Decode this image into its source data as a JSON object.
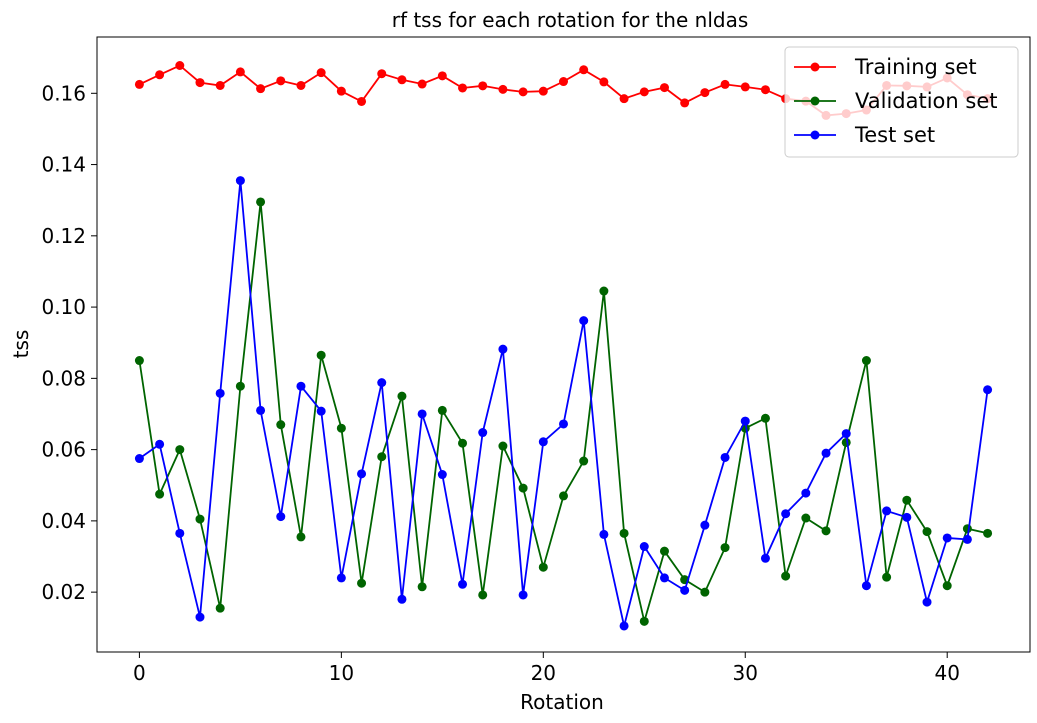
{
  "chart_data": {
    "type": "line",
    "title": "rf tss for each rotation for the nldas",
    "xlabel": "Rotation",
    "ylabel": "tss",
    "xlim": [
      -2.1,
      44.1
    ],
    "ylim": [
      0.0032,
      0.1758
    ],
    "xticks": [
      0,
      10,
      20,
      30,
      40
    ],
    "xtick_labels": [
      "0",
      "10",
      "20",
      "30",
      "40"
    ],
    "yticks": [
      0.02,
      0.04,
      0.06,
      0.08,
      0.1,
      0.12,
      0.14,
      0.16
    ],
    "ytick_labels": [
      "0.02",
      "0.04",
      "0.06",
      "0.08",
      "0.10",
      "0.12",
      "0.14",
      "0.16"
    ],
    "grid": false,
    "legend_position": "top-right",
    "x": [
      0,
      1,
      2,
      3,
      4,
      5,
      6,
      7,
      8,
      9,
      10,
      11,
      12,
      13,
      14,
      15,
      16,
      17,
      18,
      19,
      20,
      21,
      22,
      23,
      24,
      25,
      26,
      27,
      28,
      29,
      30,
      31,
      32,
      33,
      34,
      35,
      36,
      37,
      38,
      39,
      40,
      41,
      42
    ],
    "series": [
      {
        "name": "Training set",
        "color": "#ff0000",
        "marker": "circle",
        "values": [
          0.1625,
          0.1652,
          0.1678,
          0.163,
          0.1622,
          0.166,
          0.1613,
          0.1635,
          0.1622,
          0.1658,
          0.1606,
          0.1577,
          0.1655,
          0.1638,
          0.1626,
          0.1649,
          0.1615,
          0.1621,
          0.1611,
          0.1604,
          0.1606,
          0.1633,
          0.1666,
          0.1632,
          0.1585,
          0.1604,
          0.1616,
          0.1573,
          0.1602,
          0.1625,
          0.1618,
          0.161,
          0.1585,
          0.1578,
          0.1538,
          0.1543,
          0.1553,
          0.1622,
          0.1621,
          0.1618,
          0.1643,
          0.1596,
          0.1585
        ]
      },
      {
        "name": "Validation set",
        "color": "#006400",
        "marker": "circle",
        "values": [
          0.085,
          0.0475,
          0.06,
          0.0405,
          0.0155,
          0.0778,
          0.1295,
          0.067,
          0.0355,
          0.0865,
          0.066,
          0.0225,
          0.058,
          0.075,
          0.0215,
          0.071,
          0.0618,
          0.0192,
          0.061,
          0.0492,
          0.027,
          0.047,
          0.0568,
          0.1045,
          0.0365,
          0.0118,
          0.0315,
          0.0235,
          0.02,
          0.0325,
          0.066,
          0.0688,
          0.0245,
          0.0408,
          0.0372,
          0.062,
          0.085,
          0.0242,
          0.0458,
          0.037,
          0.0218,
          0.0378,
          0.0365
        ]
      },
      {
        "name": "Test set",
        "color": "#0000ff",
        "marker": "circle",
        "values": [
          0.0575,
          0.0615,
          0.0365,
          0.013,
          0.0758,
          0.1355,
          0.071,
          0.0412,
          0.0778,
          0.0708,
          0.024,
          0.0532,
          0.0788,
          0.018,
          0.07,
          0.053,
          0.0222,
          0.0648,
          0.0882,
          0.0192,
          0.0622,
          0.0672,
          0.0962,
          0.0362,
          0.0105,
          0.0328,
          0.024,
          0.0205,
          0.0388,
          0.0578,
          0.068,
          0.0295,
          0.042,
          0.0478,
          0.059,
          0.0645,
          0.0218,
          0.0428,
          0.041,
          0.0172,
          0.0352,
          0.0348,
          0.0768
        ]
      }
    ]
  }
}
